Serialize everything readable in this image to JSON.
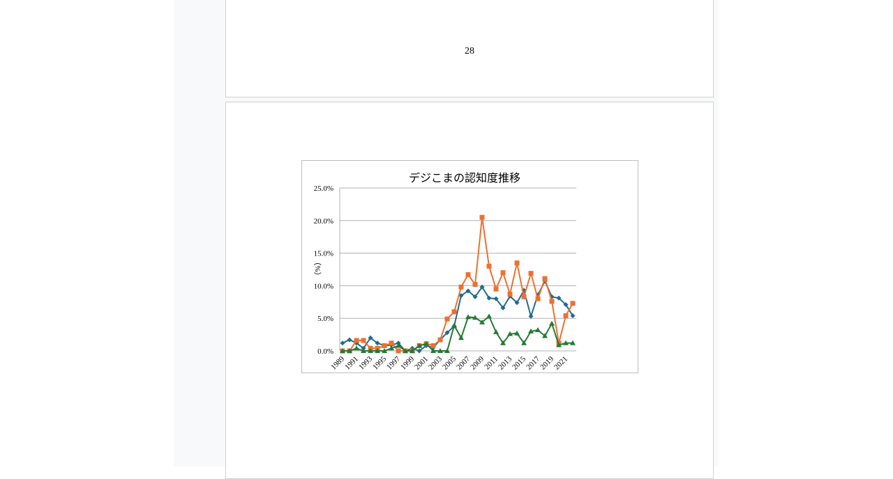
{
  "page_number": "28",
  "chart_data": {
    "type": "line",
    "title": "デジこまの認知度推移",
    "ylabel": "（%）",
    "xlabel": "",
    "ylim": [
      0,
      25
    ],
    "y_ticks": [
      "0.0%",
      "5.0%",
      "10.0%",
      "15.0%",
      "20.0%",
      "25.0%"
    ],
    "x": [
      1989,
      1990,
      1991,
      1992,
      1993,
      1994,
      1995,
      1996,
      1997,
      1998,
      1999,
      2000,
      2001,
      2002,
      2003,
      2004,
      2005,
      2006,
      2007,
      2008,
      2009,
      2010,
      2011,
      2012,
      2013,
      2014,
      2015,
      2016,
      2017,
      2018,
      2019,
      2020,
      2021,
      2022
    ],
    "x_tick_labels": [
      "1989",
      "1991",
      "1993",
      "1995",
      "1997",
      "1999",
      "2001",
      "2003",
      "2005",
      "2007",
      "2009",
      "2011",
      "2013",
      "2015",
      "2017",
      "2019",
      "2021"
    ],
    "grid": true,
    "legend": "none",
    "series": [
      {
        "color": "#1f6b8f",
        "marker": "diamond",
        "values": [
          1.2,
          1.7,
          1.2,
          0.4,
          2.0,
          1.2,
          0.8,
          0.9,
          1.2,
          0,
          0.4,
          0,
          0.8,
          0.5,
          1.7,
          2.8,
          3.8,
          8.5,
          9.2,
          8.3,
          9.8,
          8.1,
          8.0,
          6.6,
          8.4,
          7.4,
          9.3,
          5.3,
          8.6,
          10.7,
          8.3,
          8.1,
          7.1,
          5.4
        ]
      },
      {
        "color": "#ed7030",
        "marker": "square",
        "values": [
          0,
          0,
          1.6,
          1.6,
          0.4,
          0.4,
          0.8,
          1.2,
          0,
          0,
          0,
          0.8,
          1.1,
          0.8,
          1.7,
          4.9,
          6.0,
          9.8,
          11.7,
          10.2,
          20.5,
          13.0,
          9.5,
          12.0,
          8.7,
          13.5,
          8.3,
          11.9,
          8.0,
          11.1,
          7.6,
          1.2,
          5.4,
          7.3
        ]
      },
      {
        "color": "#237a33",
        "marker": "triangle",
        "values": [
          0,
          0,
          0.4,
          0,
          0,
          0,
          0,
          0.4,
          0.8,
          0,
          0,
          0.8,
          1.1,
          0,
          0,
          0,
          3.9,
          2.0,
          5.2,
          5.1,
          4.4,
          5.3,
          2.9,
          1.2,
          2.6,
          2.7,
          1.2,
          3.0,
          3.2,
          2.3,
          4.2,
          0.9,
          1.2,
          1.2
        ]
      }
    ]
  }
}
